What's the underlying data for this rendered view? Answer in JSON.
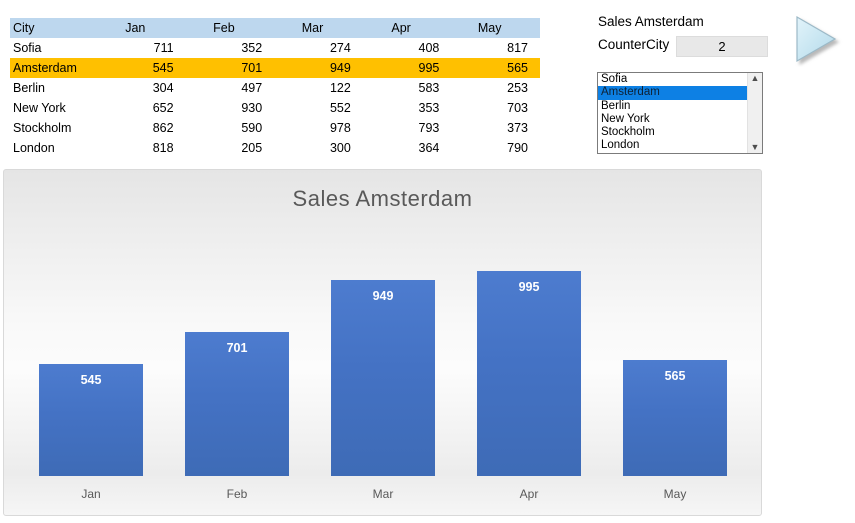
{
  "table": {
    "headers": [
      "City",
      "Jan",
      "Feb",
      "Mar",
      "Apr",
      "May"
    ],
    "header_bg": "#BDD7EE",
    "highlight_bg": "#FFC000",
    "rows": [
      {
        "city": "Sofia",
        "values": [
          711,
          352,
          274,
          408,
          817
        ],
        "highlight": false
      },
      {
        "city": "Amsterdam",
        "values": [
          545,
          701,
          949,
          995,
          565
        ],
        "highlight": true
      },
      {
        "city": "Berlin",
        "values": [
          304,
          497,
          122,
          583,
          253
        ],
        "highlight": false
      },
      {
        "city": "New York",
        "values": [
          652,
          930,
          552,
          353,
          703
        ],
        "highlight": false
      },
      {
        "city": "Stockholm",
        "values": [
          862,
          590,
          978,
          793,
          373
        ],
        "highlight": false
      },
      {
        "city": "London",
        "values": [
          818,
          205,
          300,
          364,
          790
        ],
        "highlight": false
      }
    ]
  },
  "panel": {
    "title": "Sales Amsterdam",
    "counter_label": "CounterCity",
    "counter_value": "2",
    "listbox": {
      "items": [
        "Sofia",
        "Amsterdam",
        "Berlin",
        "New York",
        "Stockholm",
        "London"
      ],
      "selected": "Amsterdam",
      "selection_bg": "#0d80e4",
      "scroll_up_icon": "▲",
      "scroll_down_icon": "▼"
    }
  },
  "shape": {
    "kind": "play-triangle-button",
    "fill_light": "#d8eef7",
    "fill_dark": "#b9dcec",
    "stroke": "#9cb9c7"
  },
  "chart_data": {
    "type": "bar",
    "title": "Sales Amsterdam",
    "series_name": "Amsterdam",
    "categories": [
      "Jan",
      "Feb",
      "Mar",
      "Apr",
      "May"
    ],
    "values": [
      545,
      701,
      949,
      995,
      565
    ],
    "xlabel": "",
    "ylabel": "",
    "ylim": [
      0,
      1050
    ],
    "grid": false,
    "legend": false,
    "bar_color": "#4472C4",
    "data_label_color": "#ffffff",
    "axis_label_color": "#595959",
    "title_color": "#595959",
    "data_labels_visible": true
  }
}
